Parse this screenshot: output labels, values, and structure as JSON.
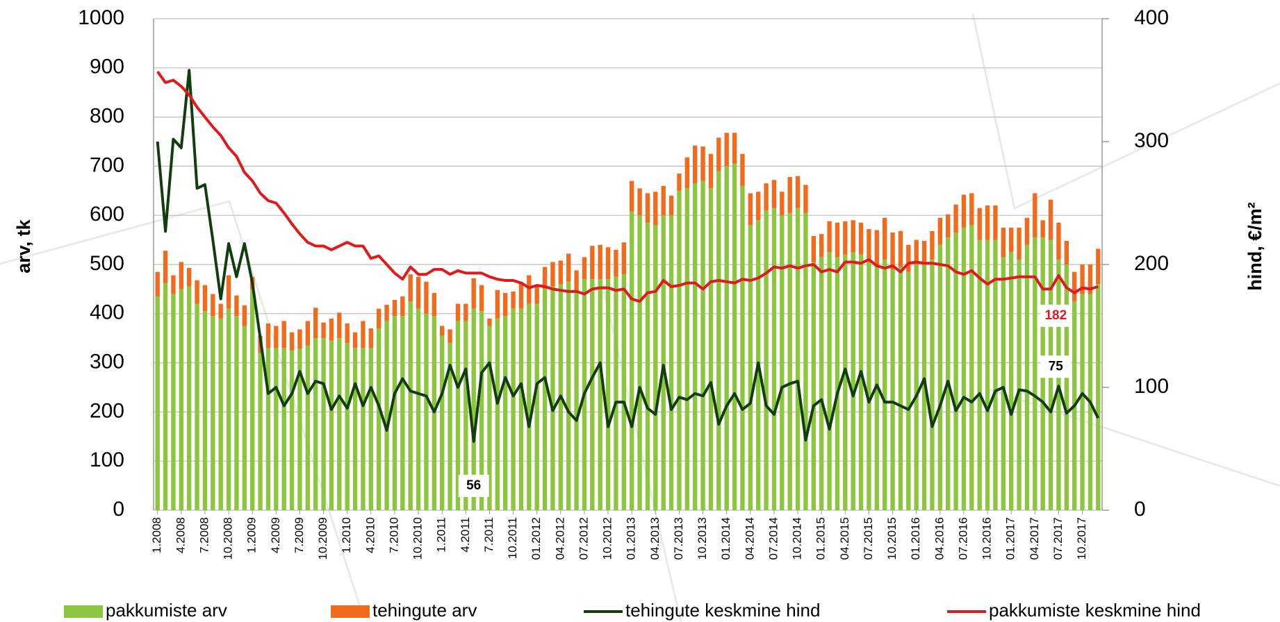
{
  "chart_data": {
    "type": "bar-line",
    "ylabel": "arv, tk",
    "y2label": "hind, €/m²",
    "ylim": [
      0,
      1000
    ],
    "yticks": [
      0,
      100,
      200,
      300,
      400,
      500,
      600,
      700,
      800,
      900,
      1000
    ],
    "y2lim": [
      0,
      400
    ],
    "y2ticks": [
      0,
      100,
      200,
      300,
      400
    ],
    "grid": true,
    "legend": "bottom",
    "categories": [
      "1.2008",
      null,
      null,
      "4.2008",
      null,
      null,
      "7.2008",
      null,
      null,
      "10.2008",
      null,
      null,
      "1.2009",
      null,
      null,
      "4.2009",
      null,
      null,
      "7.2009",
      null,
      null,
      "10.2009",
      null,
      null,
      "1.2010",
      null,
      null,
      "4.2010",
      null,
      null,
      "7.2010",
      null,
      null,
      "10.2010",
      null,
      null,
      "1.2011",
      null,
      null,
      "4.2011",
      null,
      null,
      "7.2011",
      null,
      null,
      "10.2011",
      null,
      null,
      "01.2012",
      null,
      null,
      "04.2012",
      null,
      null,
      "07.2012",
      null,
      null,
      "10.2012",
      null,
      null,
      "01.2013",
      null,
      null,
      "04.2013",
      null,
      null,
      "07.2013",
      null,
      null,
      "10.2013",
      null,
      null,
      "01.2014",
      null,
      null,
      "04.2014",
      null,
      null,
      "07.2014",
      null,
      null,
      "10.2014",
      null,
      null,
      "01.2015",
      null,
      null,
      "04.2015",
      null,
      null,
      "07.2015",
      null,
      null,
      "10.2015",
      null,
      null,
      "01.2016",
      null,
      null,
      "04.2016",
      null,
      null,
      "07.2016",
      null,
      null,
      "10.2016",
      null,
      null,
      "01.2017",
      null,
      null,
      "04.2017",
      null,
      null,
      "07.2017",
      null,
      null,
      "10.2017",
      null,
      null
    ],
    "series": [
      {
        "name": "pakkumiste arv",
        "color": "#8cc63f",
        "kind": "bar",
        "values": [
          435,
          462,
          440,
          450,
          455,
          420,
          405,
          395,
          390,
          410,
          395,
          375,
          450,
          320,
          330,
          330,
          330,
          325,
          328,
          335,
          350,
          350,
          345,
          350,
          340,
          330,
          330,
          330,
          370,
          385,
          395,
          395,
          425,
          410,
          400,
          395,
          355,
          340,
          385,
          385,
          410,
          405,
          375,
          390,
          395,
          410,
          410,
          420,
          420,
          450,
          455,
          460,
          465,
          445,
          470,
          470,
          470,
          470,
          475,
          480,
          608,
          600,
          585,
          580,
          600,
          600,
          650,
          655,
          665,
          670,
          655,
          690,
          700,
          705,
          660,
          580,
          590,
          610,
          615,
          600,
          605,
          615,
          605,
          505,
          515,
          525,
          515,
          520,
          525,
          520,
          505,
          495,
          510,
          490,
          495,
          485,
          500,
          500,
          510,
          540,
          555,
          565,
          575,
          580,
          550,
          550,
          550,
          515,
          525,
          510,
          540,
          555,
          555,
          550,
          510,
          500,
          425,
          440,
          440,
          460
        ]
      },
      {
        "name": "tehingute arv",
        "color": "#f26b1d",
        "kind": "bar",
        "values": [
          50,
          66,
          38,
          55,
          38,
          48,
          53,
          45,
          30,
          68,
          42,
          42,
          25,
          35,
          50,
          45,
          55,
          37,
          40,
          50,
          62,
          32,
          45,
          52,
          40,
          32,
          55,
          40,
          40,
          33,
          33,
          40,
          55,
          65,
          65,
          47,
          20,
          28,
          35,
          35,
          62,
          53,
          15,
          58,
          47,
          35,
          55,
          58,
          35,
          45,
          50,
          48,
          57,
          43,
          45,
          68,
          70,
          65,
          55,
          65,
          62,
          55,
          60,
          68,
          60,
          40,
          35,
          63,
          77,
          70,
          70,
          68,
          68,
          63,
          65,
          65,
          58,
          55,
          57,
          48,
          73,
          65,
          57,
          53,
          47,
          63,
          70,
          68,
          65,
          65,
          67,
          75,
          85,
          75,
          73,
          55,
          50,
          48,
          58,
          55,
          47,
          57,
          67,
          65,
          65,
          70,
          70,
          60,
          50,
          65,
          55,
          90,
          35,
          82,
          75,
          48,
          60,
          60,
          60,
          72
        ]
      },
      {
        "name": "tehingute keskmine hind",
        "color": "#123d0c",
        "kind": "line",
        "axis": "y2",
        "values": [
          300,
          227,
          302,
          295,
          358,
          262,
          265,
          220,
          172,
          217,
          190,
          217,
          185,
          140,
          95,
          100,
          85,
          95,
          113,
          95,
          105,
          103,
          82,
          93,
          83,
          103,
          85,
          100,
          85,
          65,
          95,
          107,
          97,
          95,
          93,
          80,
          95,
          118,
          100,
          115,
          56,
          112,
          120,
          87,
          108,
          93,
          103,
          68,
          103,
          108,
          81,
          93,
          80,
          73,
          95,
          108,
          120,
          68,
          88,
          88,
          68,
          100,
          83,
          78,
          118,
          82,
          92,
          90,
          95,
          93,
          104,
          70,
          85,
          95,
          82,
          87,
          120,
          85,
          78,
          100,
          103,
          105,
          57,
          85,
          90,
          66,
          95,
          115,
          93,
          113,
          88,
          102,
          88,
          88,
          85,
          82,
          93,
          107,
          68,
          85,
          105,
          81,
          92,
          88,
          95,
          81,
          97,
          100,
          78,
          98,
          97,
          93,
          88,
          80,
          101,
          79,
          85,
          95,
          88,
          75
        ],
        "value_labels": [
          null,
          null,
          null,
          null,
          null,
          null,
          null,
          null,
          null,
          null,
          null,
          null,
          null,
          null,
          null,
          null,
          null,
          null,
          null,
          null,
          null,
          null,
          null,
          null,
          null,
          null,
          null,
          null,
          null,
          null,
          null,
          null,
          null,
          null,
          null,
          null,
          null,
          null,
          null,
          null,
          "56",
          null,
          null,
          null,
          null,
          null,
          null,
          null,
          null,
          null,
          null,
          null,
          null,
          null,
          null,
          null,
          null,
          null,
          null,
          null,
          null,
          null,
          null,
          null,
          null,
          null,
          null,
          null,
          null,
          null,
          null,
          null,
          null,
          null,
          null,
          null,
          null,
          null,
          null,
          null,
          null,
          null,
          null,
          null,
          null,
          null,
          null,
          null,
          null,
          null,
          null,
          null,
          null,
          null,
          null,
          null,
          null,
          null,
          null,
          null,
          null,
          null,
          null,
          null,
          null,
          null,
          null,
          null,
          null,
          null,
          null,
          null,
          null,
          null,
          null,
          null,
          null,
          null,
          null,
          "75"
        ]
      },
      {
        "name": "pakkumiste keskmine hind",
        "color": "#e0191b",
        "kind": "line",
        "axis": "y2",
        "values": [
          357,
          348,
          350,
          345,
          338,
          328,
          320,
          312,
          305,
          295,
          288,
          275,
          268,
          258,
          252,
          250,
          242,
          233,
          225,
          218,
          215,
          215,
          212,
          215,
          218,
          215,
          215,
          205,
          207,
          200,
          193,
          188,
          198,
          192,
          192,
          196,
          196,
          192,
          195,
          193,
          193,
          193,
          190,
          188,
          187,
          187,
          185,
          181,
          183,
          182,
          180,
          179,
          178,
          178,
          176,
          180,
          181,
          181,
          179,
          180,
          172,
          170,
          177,
          178,
          187,
          182,
          183,
          185,
          185,
          180,
          186,
          187,
          186,
          185,
          188,
          187,
          189,
          193,
          198,
          197,
          199,
          197,
          199,
          200,
          194,
          196,
          194,
          202,
          202,
          201,
          204,
          199,
          197,
          199,
          194,
          201,
          202,
          201,
          201,
          200,
          199,
          194,
          192,
          195,
          189,
          184,
          188,
          188,
          189,
          190,
          190,
          190,
          180,
          180,
          191,
          181,
          177,
          181,
          180,
          182
        ],
        "value_labels": [
          null,
          null,
          null,
          null,
          null,
          null,
          null,
          null,
          null,
          null,
          null,
          null,
          null,
          null,
          null,
          null,
          null,
          null,
          null,
          null,
          null,
          null,
          null,
          null,
          null,
          null,
          null,
          null,
          null,
          null,
          null,
          null,
          null,
          null,
          null,
          null,
          null,
          null,
          null,
          null,
          null,
          null,
          null,
          null,
          null,
          null,
          null,
          null,
          null,
          null,
          null,
          null,
          null,
          null,
          null,
          null,
          null,
          null,
          null,
          null,
          null,
          null,
          null,
          null,
          null,
          null,
          null,
          null,
          null,
          null,
          null,
          null,
          null,
          null,
          null,
          null,
          null,
          null,
          null,
          null,
          null,
          null,
          null,
          null,
          null,
          null,
          null,
          null,
          null,
          null,
          null,
          null,
          null,
          null,
          null,
          null,
          null,
          null,
          null,
          null,
          null,
          null,
          null,
          null,
          null,
          null,
          null,
          null,
          null,
          null,
          null,
          null,
          null,
          null,
          null,
          null,
          null,
          null,
          null,
          "182"
        ]
      }
    ]
  }
}
